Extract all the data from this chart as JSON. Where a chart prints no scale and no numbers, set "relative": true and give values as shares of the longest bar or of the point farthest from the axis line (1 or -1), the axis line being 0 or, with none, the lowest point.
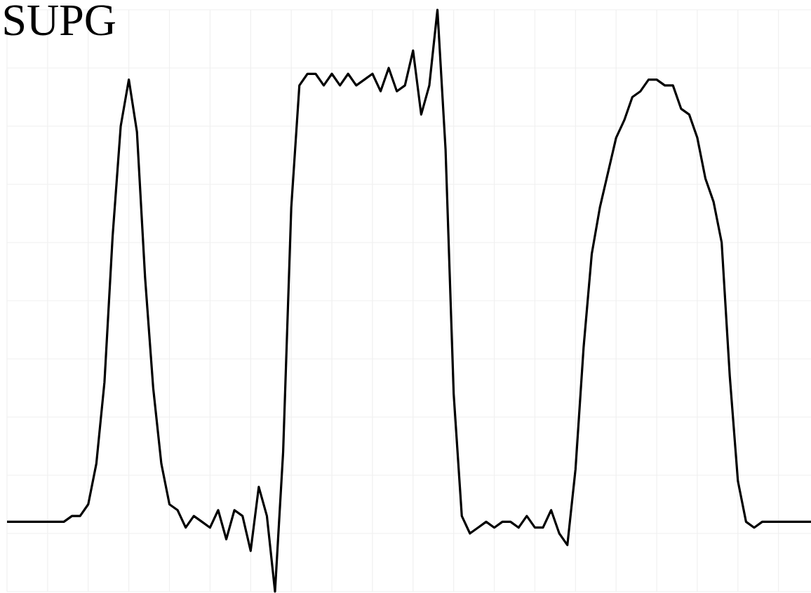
{
  "chart_data": {
    "type": "line",
    "title": "SUPG",
    "relative": true,
    "color": "#000000",
    "grid": true,
    "line_style": "solid",
    "categories": [
      null,
      null,
      null,
      null,
      null,
      null,
      null,
      null,
      null,
      null,
      null,
      null,
      null,
      null,
      null,
      null,
      null,
      null,
      null,
      null,
      null,
      null,
      null,
      null,
      null,
      null,
      null,
      null,
      null,
      null,
      null,
      null,
      null,
      null,
      null,
      null,
      null,
      null,
      null,
      null,
      null,
      null,
      null,
      null,
      null,
      null,
      null,
      null,
      null,
      null,
      null,
      null,
      null,
      null,
      null,
      null,
      null,
      null,
      null,
      null,
      null,
      null,
      null,
      null,
      null,
      null,
      null,
      null,
      null,
      null,
      null,
      null,
      null,
      null,
      null,
      null,
      null,
      null,
      null,
      null,
      null,
      null,
      null,
      null,
      null,
      null,
      null,
      null,
      null,
      null,
      null,
      null,
      null,
      null,
      null,
      null,
      null,
      null,
      null,
      null
    ],
    "values": [
      0.12,
      0.12,
      0.12,
      0.12,
      0.12,
      0.12,
      0.12,
      0.12,
      0.13,
      0.13,
      0.15,
      0.22,
      0.36,
      0.61,
      0.8,
      0.88,
      0.79,
      0.54,
      0.35,
      0.22,
      0.15,
      0.14,
      0.11,
      0.13,
      0.12,
      0.11,
      0.14,
      0.09,
      0.14,
      0.13,
      0.07,
      0.18,
      0.13,
      0,
      0.24,
      0.66,
      0.87,
      0.89,
      0.89,
      0.87,
      0.89,
      0.87,
      0.89,
      0.87,
      0.88,
      0.89,
      0.86,
      0.9,
      0.86,
      0.87,
      0.93,
      0.82,
      0.87,
      1,
      0.76,
      0.34,
      0.13,
      0.1,
      0.11,
      0.12,
      0.11,
      0.12,
      0.12,
      0.11,
      0.13,
      0.11,
      0.11,
      0.14,
      0.1,
      0.08,
      0.21,
      0.42,
      0.58,
      0.66,
      0.72,
      0.78,
      0.81,
      0.85,
      0.86,
      0.88,
      0.88,
      0.87,
      0.87,
      0.83,
      0.82,
      0.78,
      0.71,
      0.67,
      0.6,
      0.37,
      0.19,
      0.12,
      0.11,
      0.12,
      0.12,
      0.12,
      0.12,
      0.12,
      0.12,
      0.12
    ]
  }
}
